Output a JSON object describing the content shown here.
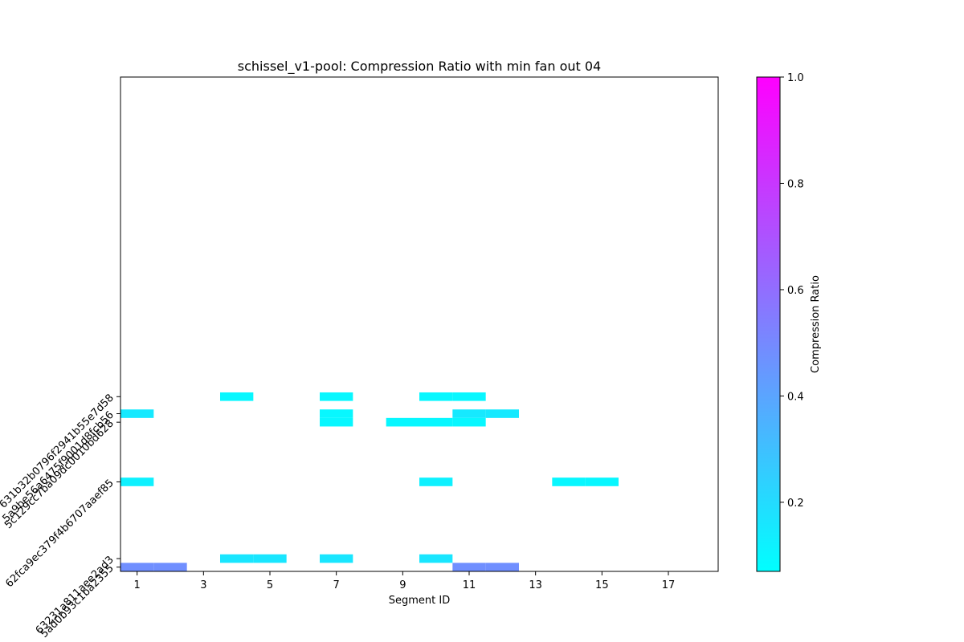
{
  "chart_data": {
    "type": "heatmap",
    "title": "schissel_v1-pool: Compression Ratio with min fan out 04",
    "xlabel": "Segment ID",
    "ylabel": "",
    "xlim": [
      0.5,
      18.5
    ],
    "x_ticks": [
      1,
      3,
      5,
      7,
      9,
      11,
      13,
      15,
      17
    ],
    "y_rows": [
      {
        "label": "631b32b0796f2941b55e7d58",
        "y": 50
      },
      {
        "label": "5a9be56a6475f9001d8fcb56",
        "y": 48
      },
      {
        "label": "5c129cc7ba09dc0010bd628",
        "y": 47
      },
      {
        "label": "62fca9ec379f4b6707aaef85",
        "y": 40
      },
      {
        "label": "63231a811aee2ad3",
        "y": 31
      },
      {
        "label": "5ad0b93c1ba2355",
        "y": 30
      }
    ],
    "ylim": [
      29.5,
      87.5
    ],
    "colorbar": {
      "label": "Compression Ratio",
      "range": [
        0.07,
        1.0
      ],
      "ticks": [
        0.2,
        0.4,
        0.6,
        0.8,
        1.0
      ],
      "colormap": "cool",
      "start_color": "#00ffff",
      "end_color": "#ff00ff"
    },
    "cells": [
      {
        "x": 4,
        "y": 50,
        "value": 0.1
      },
      {
        "x": 7,
        "y": 50,
        "value": 0.1
      },
      {
        "x": 10,
        "y": 50,
        "value": 0.1
      },
      {
        "x": 11,
        "y": 50,
        "value": 0.1
      },
      {
        "x": 1,
        "y": 48,
        "value": 0.15
      },
      {
        "x": 7,
        "y": 48,
        "value": 0.1
      },
      {
        "x": 11,
        "y": 48,
        "value": 0.15
      },
      {
        "x": 12,
        "y": 48,
        "value": 0.15
      },
      {
        "x": 7,
        "y": 47,
        "value": 0.1
      },
      {
        "x": 9,
        "y": 47,
        "value": 0.1
      },
      {
        "x": 10,
        "y": 47,
        "value": 0.1
      },
      {
        "x": 11,
        "y": 47,
        "value": 0.1
      },
      {
        "x": 1,
        "y": 40,
        "value": 0.12
      },
      {
        "x": 10,
        "y": 40,
        "value": 0.12
      },
      {
        "x": 14,
        "y": 40,
        "value": 0.1
      },
      {
        "x": 15,
        "y": 40,
        "value": 0.1
      },
      {
        "x": 4,
        "y": 31,
        "value": 0.16
      },
      {
        "x": 5,
        "y": 31,
        "value": 0.16
      },
      {
        "x": 7,
        "y": 31,
        "value": 0.16
      },
      {
        "x": 10,
        "y": 31,
        "value": 0.16
      },
      {
        "x": 1,
        "y": 30,
        "value": 0.48
      },
      {
        "x": 2,
        "y": 30,
        "value": 0.48
      },
      {
        "x": 11,
        "y": 30,
        "value": 0.48
      },
      {
        "x": 12,
        "y": 30,
        "value": 0.48
      }
    ]
  }
}
